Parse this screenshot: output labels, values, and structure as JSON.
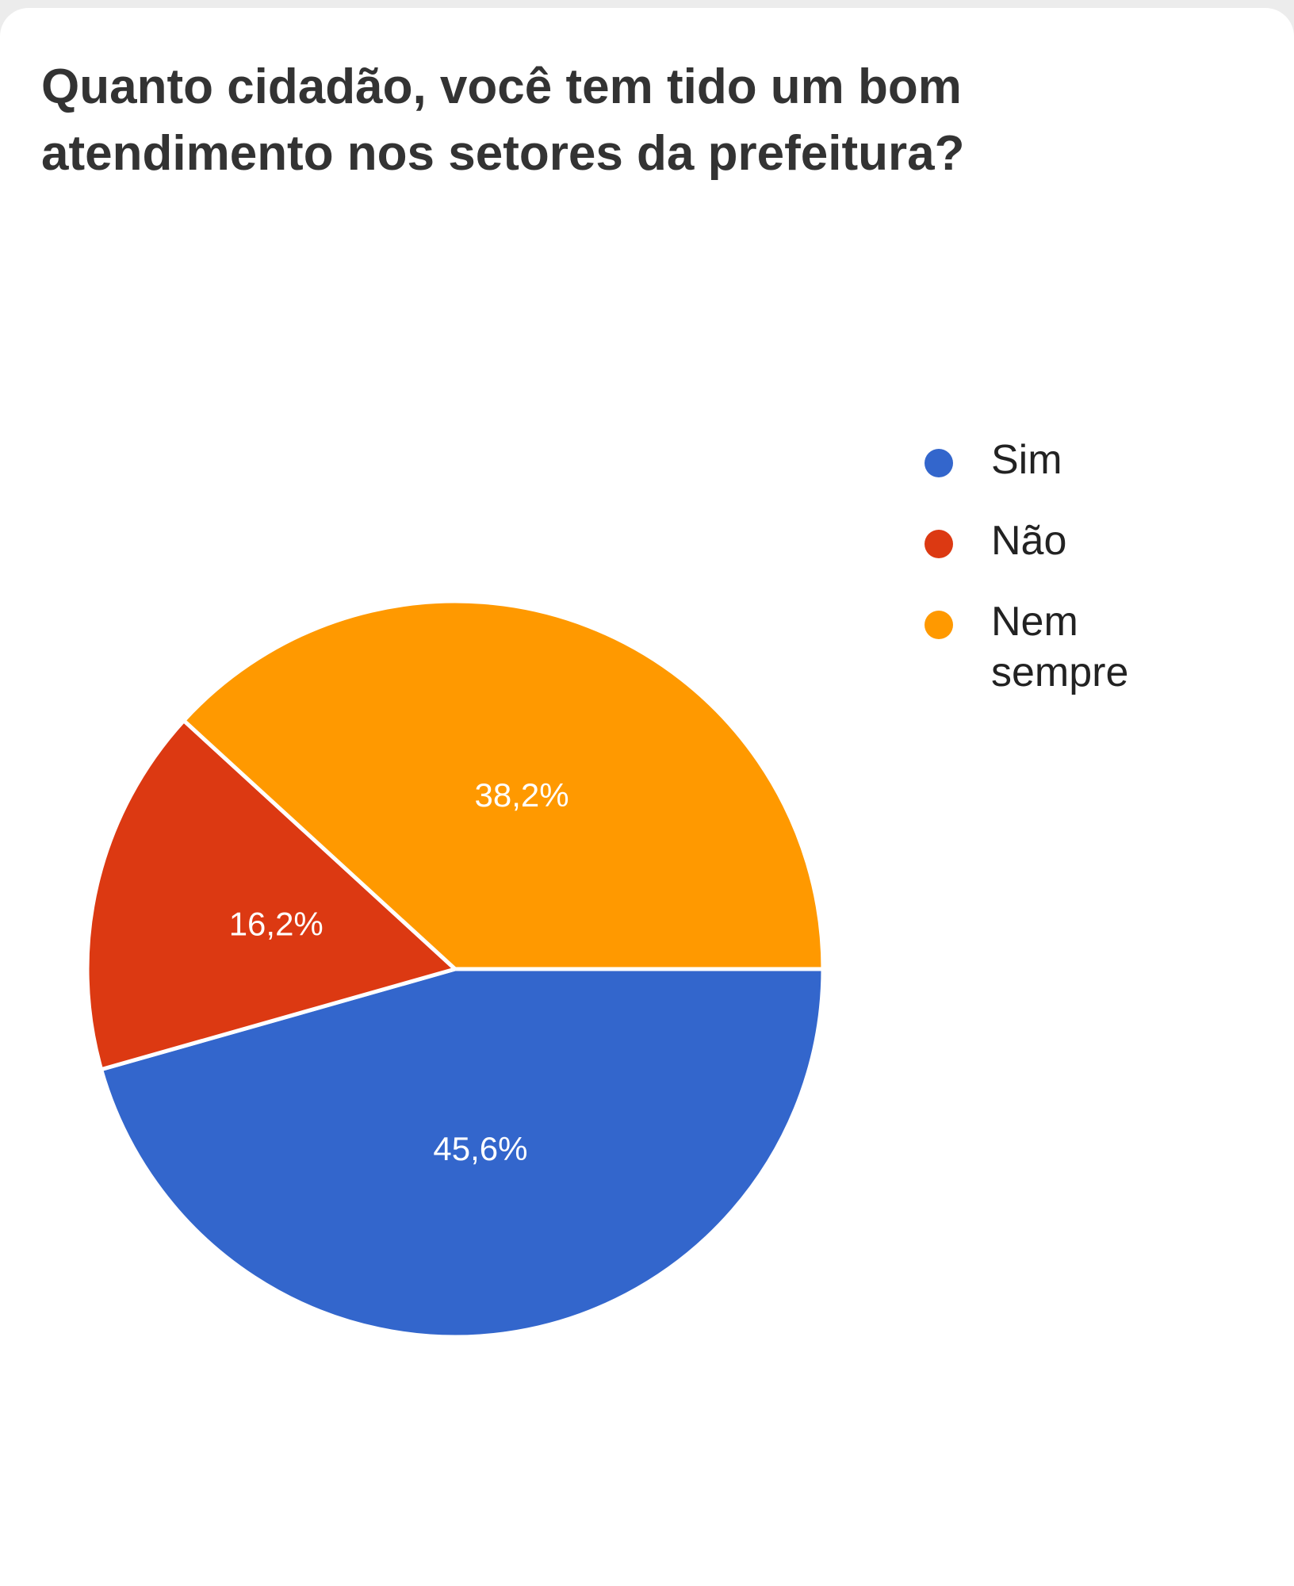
{
  "chart_data": {
    "type": "pie",
    "title": "Quanto cidadão, você tem tido um bom atendimento nos setores da prefeitura?",
    "legend_position": "right",
    "slices": [
      {
        "label": "Sim",
        "value": 45.6,
        "display": "45,6%",
        "color": "#3366cc"
      },
      {
        "label": "Não",
        "value": 16.2,
        "display": "16,2%",
        "color": "#dc3912"
      },
      {
        "label": "Nem sempre",
        "value": 38.2,
        "display": "38,2%",
        "color": "#ff9900"
      }
    ]
  }
}
